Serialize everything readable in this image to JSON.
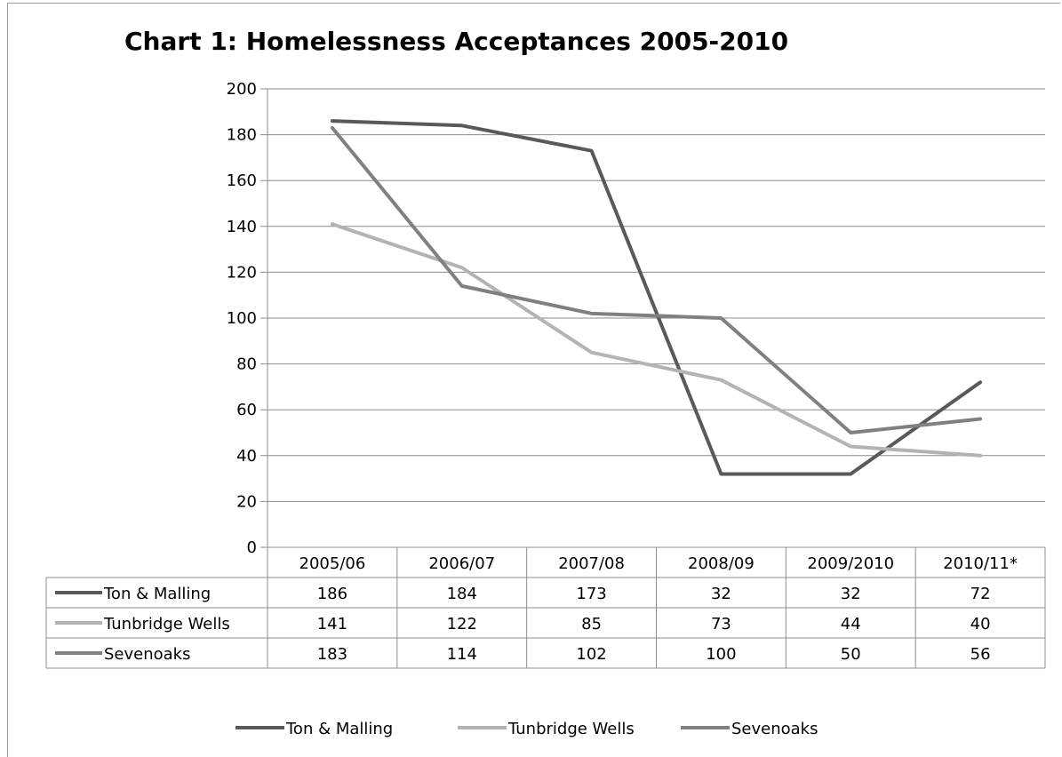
{
  "chart_data": {
    "type": "line",
    "title": "Chart 1: Homelessness Acceptances 2005-2010",
    "xlabel": "",
    "ylabel": "",
    "categories": [
      "2005/06",
      "2006/07",
      "2007/08",
      "2008/09",
      "2009/2010",
      "2010/11*"
    ],
    "ylim": [
      0,
      200
    ],
    "yticks": [
      0,
      20,
      40,
      60,
      80,
      100,
      120,
      140,
      160,
      180,
      200
    ],
    "grid": true,
    "legend_position": "bottom",
    "data_table": true,
    "series": [
      {
        "name": "Ton & Malling",
        "color": "#595959",
        "values": [
          186,
          184,
          173,
          32,
          32,
          72
        ]
      },
      {
        "name": "Tunbridge Wells",
        "color": "#b3b3b3",
        "values": [
          141,
          122,
          85,
          73,
          44,
          40
        ]
      },
      {
        "name": "Sevenoaks",
        "color": "#808080",
        "values": [
          183,
          114,
          102,
          100,
          50,
          56
        ]
      }
    ]
  }
}
